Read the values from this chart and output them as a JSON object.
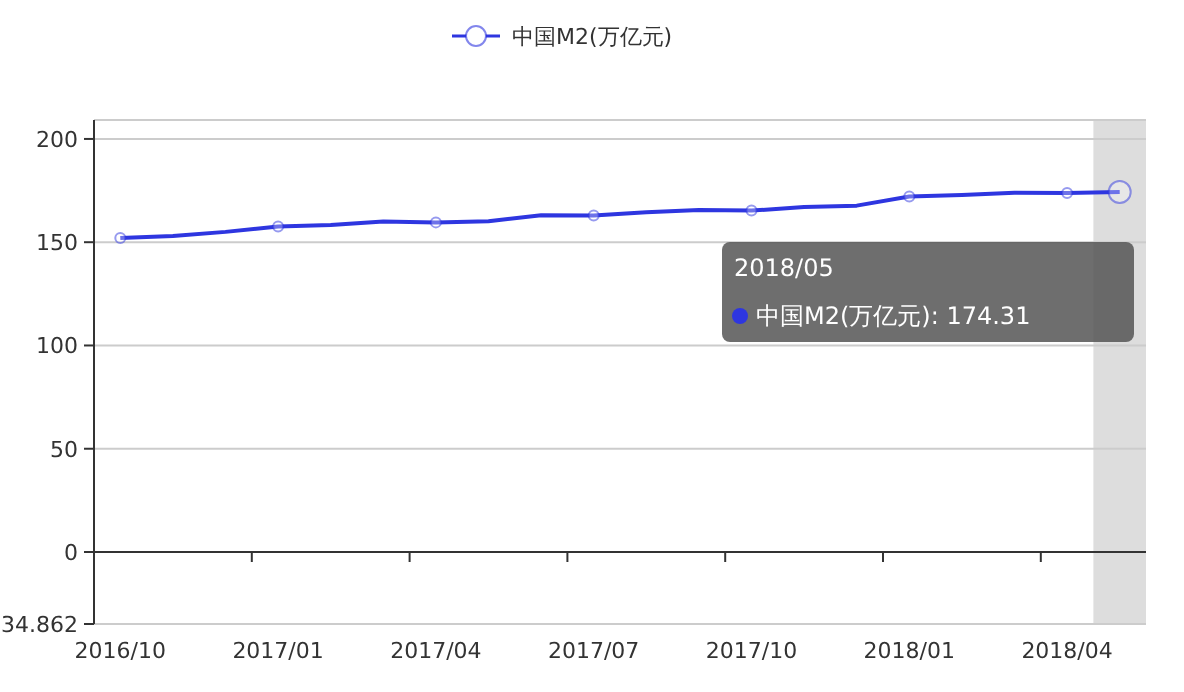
{
  "chart_data": {
    "type": "line",
    "categories": [
      "2016/10",
      null,
      null,
      "2017/01",
      null,
      null,
      "2017/04",
      null,
      null,
      "2017/07",
      null,
      null,
      "2017/10",
      null,
      null,
      "2018/01",
      null,
      null,
      "2018/04",
      null
    ],
    "series": [
      {
        "name": "中国M2(万亿元)",
        "color": "#2e36e0",
        "values": [
          152.0,
          153.0,
          155.0,
          157.6,
          158.3,
          160.0,
          159.6,
          160.1,
          163.1,
          162.9,
          164.5,
          165.6,
          165.3,
          167.0,
          167.7,
          172.1,
          172.9,
          174.0,
          173.8,
          174.31
        ]
      }
    ],
    "ylim": [
      -34.862,
      209.172
    ],
    "yticks": [
      {
        "value": -34.862,
        "label": "34.862"
      },
      0,
      50,
      100,
      150,
      200
    ],
    "grid": "y",
    "legend": "top",
    "annotations": [
      "2018/05",
      "中国M2(万亿元): 174.31"
    ]
  }
}
